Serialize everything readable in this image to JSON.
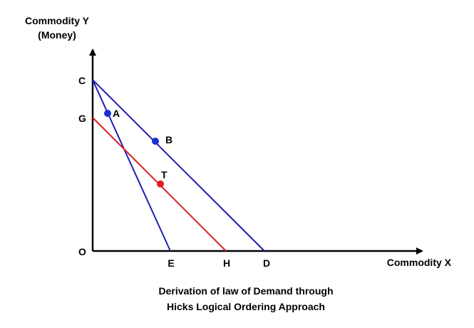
{
  "axes": {
    "y_label_line1": "Commodity Y",
    "y_label_line2": "(Money)",
    "x_label": "Commodity X",
    "origin": "O"
  },
  "points": {
    "C": "C",
    "G": "G",
    "A": "A",
    "B": "B",
    "T": "T",
    "E": "E",
    "H": "H",
    "D": "D"
  },
  "caption": {
    "line1": "Derivation of law of Demand through",
    "line2": "Hicks Logical Ordering Approach"
  },
  "colors": {
    "budget_line": "#1f1fb4",
    "compensated_line": "#e01e1e",
    "axis": "#000000",
    "point_blue": "#1a2fd6",
    "point_red": "#e01e1e"
  }
}
